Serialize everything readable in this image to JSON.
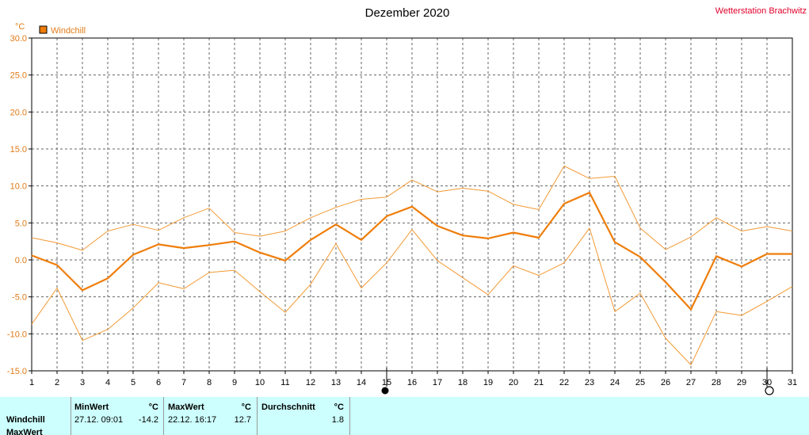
{
  "station": "Wetterstation Brachwitz",
  "colors": {
    "series": "#ef7d0a",
    "series_light": "#f29a35",
    "axis_text": "#e07b18",
    "station": "#e0002a",
    "grid": "#666666",
    "stats_bg": "#ccfffd"
  },
  "chart_data": {
    "type": "line",
    "title": "Dezember 2020",
    "ylabel": "°C",
    "ylim": [
      -15,
      30
    ],
    "yticks": [
      30,
      25,
      20,
      15,
      10,
      5,
      0,
      -5,
      -10,
      -15
    ],
    "ytick_labels": [
      "30.0",
      "25.0",
      "20.0",
      "15.0",
      "10.0",
      "5.0",
      "0.0",
      "-5.0",
      "-10.0",
      "-15.0"
    ],
    "x": [
      1,
      2,
      3,
      4,
      5,
      6,
      7,
      8,
      9,
      10,
      11,
      12,
      13,
      14,
      15,
      16,
      17,
      18,
      19,
      20,
      21,
      22,
      23,
      24,
      25,
      26,
      27,
      28,
      29,
      30,
      31
    ],
    "xlim": [
      1,
      31
    ],
    "grid": true,
    "legend": {
      "label": "Windchill",
      "position": "top-left"
    },
    "series": [
      {
        "name": "Windchill",
        "role": "mean",
        "values": [
          0.6,
          -0.7,
          -4.1,
          -2.5,
          0.7,
          2.1,
          1.6,
          2.0,
          2.5,
          1.0,
          -0.1,
          2.7,
          4.8,
          2.7,
          5.9,
          7.2,
          4.6,
          3.3,
          2.9,
          3.7,
          3.0,
          7.6,
          9.1,
          2.4,
          0.4,
          -3.0,
          -6.7,
          0.5,
          -0.9,
          0.8,
          0.8
        ]
      },
      {
        "role": "max",
        "values": [
          3.0,
          2.3,
          1.3,
          3.9,
          4.8,
          4.0,
          5.7,
          7.0,
          3.7,
          3.2,
          3.9,
          5.7,
          7.1,
          8.2,
          8.5,
          10.8,
          9.2,
          9.7,
          9.3,
          7.5,
          6.8,
          12.7,
          11.0,
          11.3,
          4.3,
          1.4,
          3.1,
          5.7,
          3.9,
          4.5,
          3.9
        ]
      },
      {
        "role": "min",
        "values": [
          -8.7,
          -3.8,
          -10.9,
          -9.4,
          -6.5,
          -3.1,
          -3.9,
          -1.7,
          -1.4,
          -4.3,
          -7.1,
          -3.3,
          2.2,
          -3.8,
          -0.4,
          4.1,
          -0.1,
          -2.4,
          -4.7,
          -0.8,
          -2.1,
          -0.4,
          4.3,
          -7.0,
          -4.5,
          -10.6,
          -14.2,
          -7.0,
          -7.5,
          -5.6,
          -3.6
        ]
      }
    ],
    "markers": [
      {
        "x": 15,
        "type": "new-moon"
      },
      {
        "x": 30,
        "type": "full-moon"
      }
    ]
  },
  "stats": {
    "row_labels": [
      "Windchill",
      "MaxWert"
    ],
    "min": {
      "header": "MinWert",
      "unit": "°C",
      "datetime": "27.12.  09:01",
      "value": "-14.2"
    },
    "max": {
      "header": "MaxWert",
      "unit": "°C",
      "datetime": "22.12.  16:17",
      "value": "12.7"
    },
    "avg": {
      "header": "Durchschnitt",
      "unit": "°C",
      "value": "1.8"
    }
  }
}
